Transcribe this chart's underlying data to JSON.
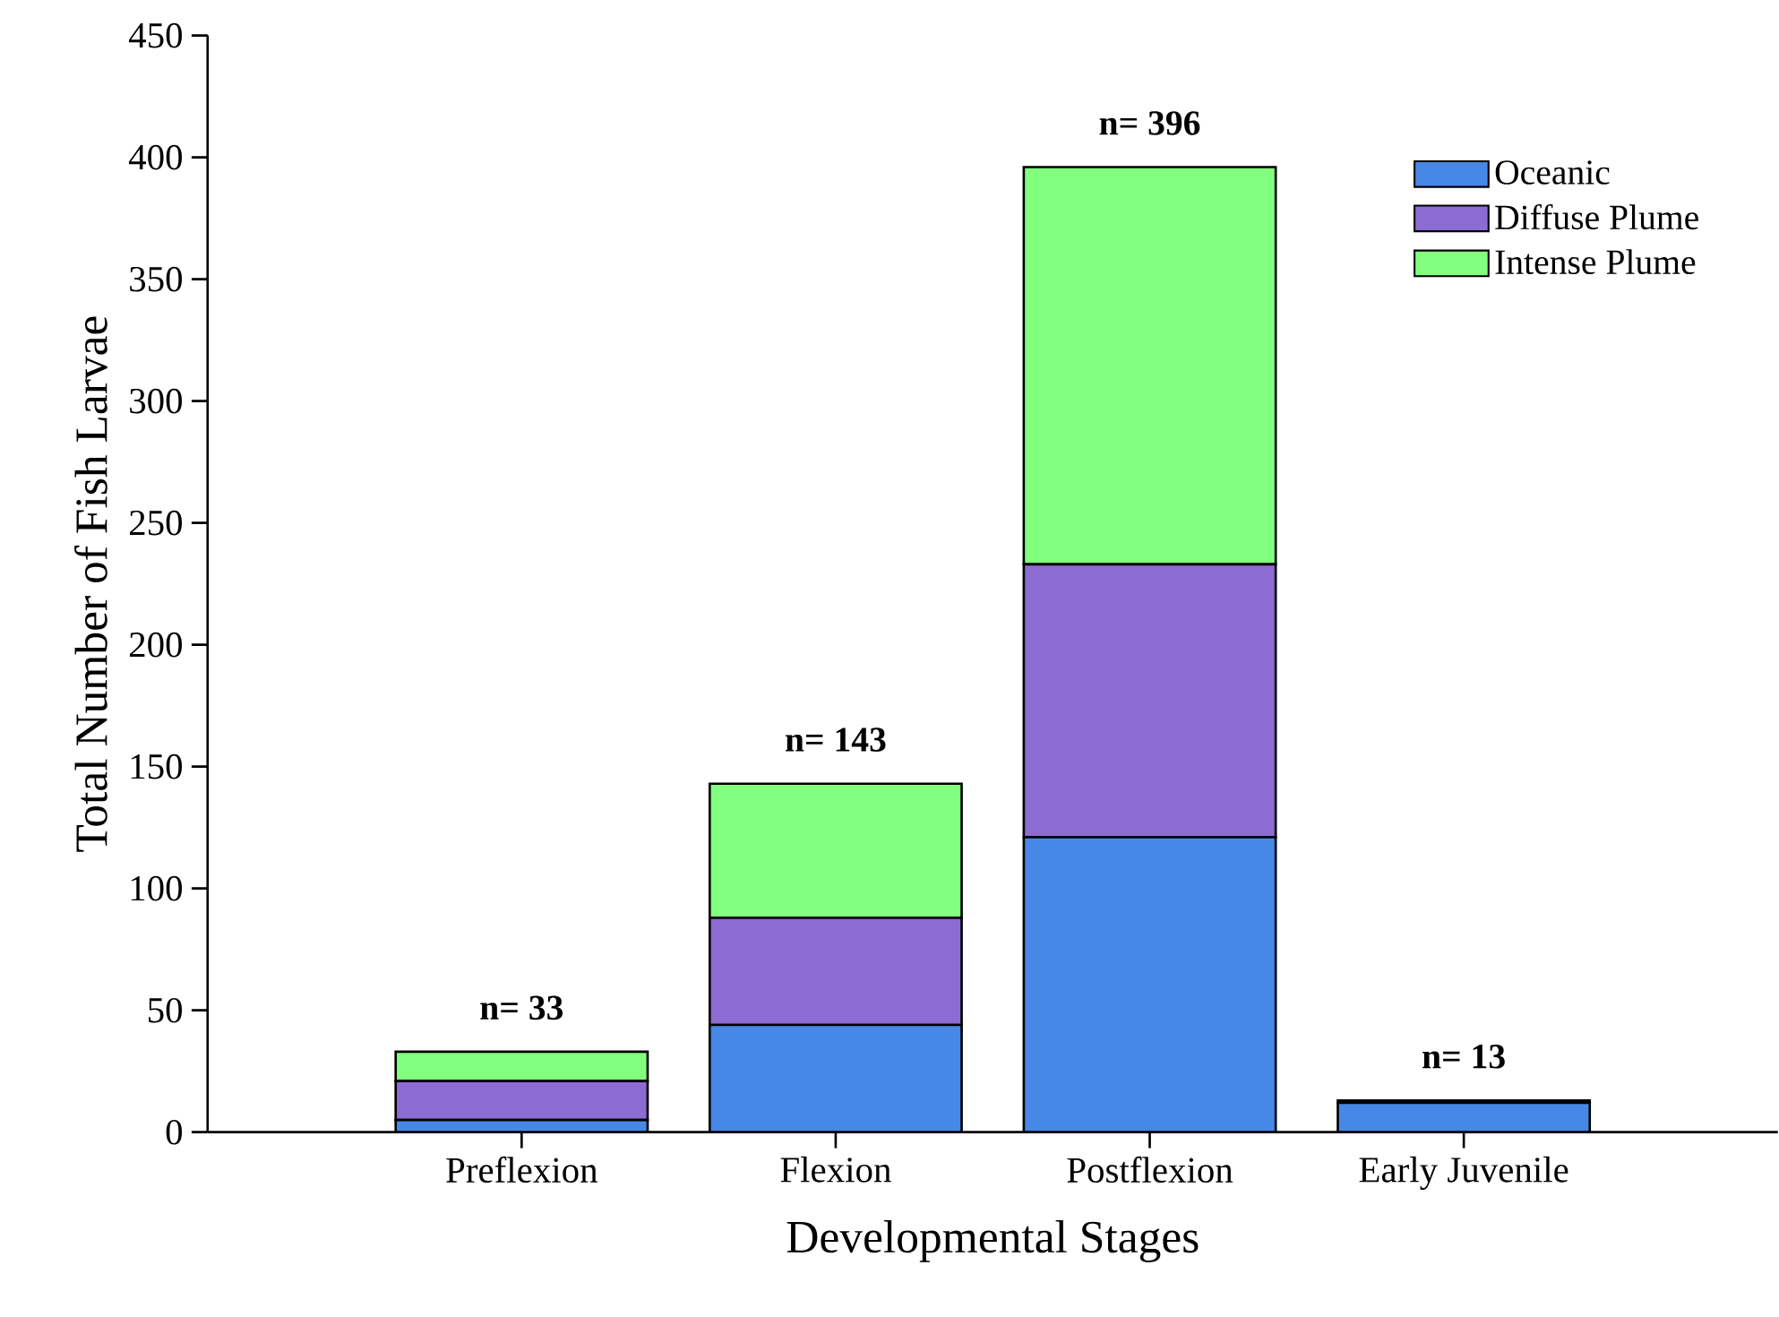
{
  "chart_data": {
    "type": "bar",
    "stacked": true,
    "xlabel": "Developmental Stages",
    "ylabel": "Total Number of Fish Larvae",
    "categories": [
      "Preflexion",
      "Flexion",
      "Postflexion",
      "Early Juvenile"
    ],
    "series": [
      {
        "name": "Oceanic",
        "color": "#4788e6",
        "values": [
          5,
          44,
          121,
          12
        ]
      },
      {
        "name": "Diffuse Plume",
        "color": "#8c6bd3",
        "values": [
          16,
          44,
          112,
          1
        ]
      },
      {
        "name": "Intense Plume",
        "color": "#83ff7f",
        "values": [
          12,
          55,
          163,
          0
        ]
      }
    ],
    "totals": [
      "n= 33",
      "n= 143",
      "n= 396",
      "n= 13"
    ],
    "ylim": [
      0,
      450
    ],
    "yticks": [
      0,
      50,
      100,
      150,
      200,
      250,
      300,
      350,
      400,
      450
    ],
    "legend": "top right"
  }
}
